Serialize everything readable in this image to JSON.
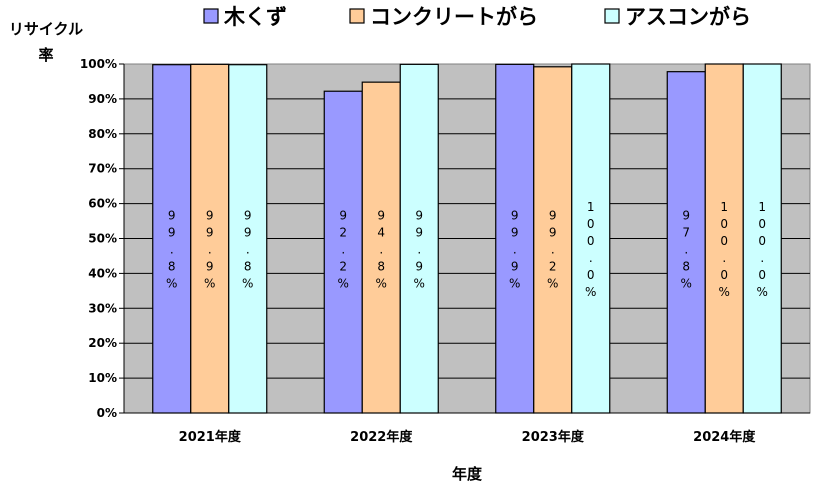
{
  "chart_data": {
    "type": "bar",
    "ylabel": "リサイクル率",
    "ylabel_lines": [
      "リサイクル",
      "率"
    ],
    "xlabel": "年度",
    "categories": [
      "2021年度",
      "2022年度",
      "2023年度",
      "2024年度"
    ],
    "ylim": [
      0,
      100
    ],
    "yticks": [
      "0%",
      "10%",
      "20%",
      "30%",
      "40%",
      "50%",
      "60%",
      "70%",
      "80%",
      "90%",
      "100%"
    ],
    "grid": true,
    "legend_position": "top",
    "series": [
      {
        "name": "木くず",
        "color": "#9999ff",
        "values": [
          99.8,
          92.2,
          99.9,
          97.8
        ],
        "labels": [
          "99.8%",
          "92.2%",
          "99.9%",
          "97.8%"
        ]
      },
      {
        "name": "コンクリートがら",
        "color": "#ffcc99",
        "values": [
          99.9,
          94.8,
          99.2,
          100.0
        ],
        "labels": [
          "99.9%",
          "94.8%",
          "99.2%",
          "100.0%"
        ]
      },
      {
        "name": "アスコンがら",
        "color": "#ccffff",
        "values": [
          99.8,
          99.9,
          100.0,
          100.0
        ],
        "labels": [
          "99.8%",
          "99.9%",
          "100.0%",
          "100.0%"
        ]
      }
    ],
    "plot_background": "#c0c0c0"
  }
}
